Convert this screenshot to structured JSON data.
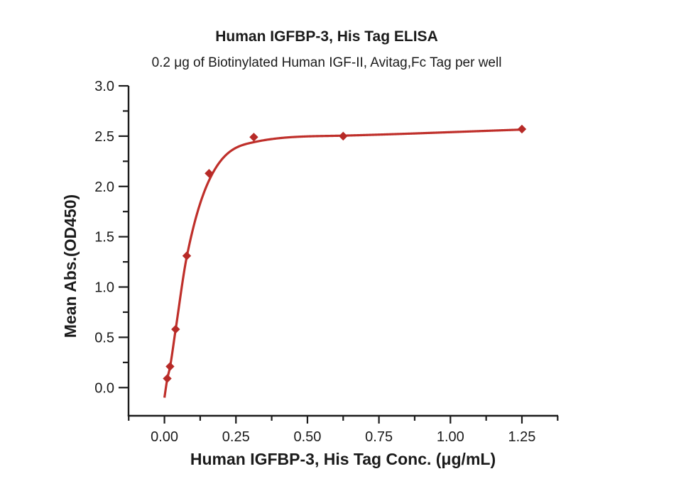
{
  "header": {
    "title": "Human IGFBP-3, His Tag ELISA",
    "subtitle": "0.2 μg of Biotinylated Human IGF-II, Avitag,Fc Tag per well"
  },
  "colors": {
    "background": "#ffffff",
    "curve": "#bf2f2a",
    "marker": "#b72a27",
    "axis": "#1b1b1b",
    "text": "#1b1b1b"
  },
  "chart_data": {
    "type": "scatter",
    "title": "Human IGFBP-3, His Tag ELISA",
    "subtitle": "0.2 μg of Biotinylated Human IGF-II, Avitag,Fc Tag per well",
    "xlabel": "Human IGFBP-3, His Tag Conc. (μg/mL)",
    "ylabel": "Mean Abs.(OD450)",
    "xlim": [
      -0.1256,
      1.3767
    ],
    "ylim": [
      -0.28,
      3.0
    ],
    "grid": false,
    "legend": "none",
    "series": [
      {
        "name": "Human IGFBP-3, His Tag",
        "marker": "diamond",
        "x": [
          0.0098,
          0.0195,
          0.039,
          0.078,
          0.156,
          0.3125,
          0.625,
          1.25
        ],
        "y": [
          0.09,
          0.21,
          0.58,
          1.31,
          2.13,
          2.49,
          2.5,
          2.57
        ]
      }
    ],
    "fit_curve_nodes": {
      "comment_visible_in_pixels_only": "smooth 4PL-style fit drawn from concentration 0 to 1.25",
      "x": [
        0.0,
        0.0098,
        0.0195,
        0.039,
        0.078,
        0.156,
        0.3125,
        0.625,
        1.25
      ],
      "y": [
        -0.1,
        0.085,
        0.205,
        0.575,
        1.3,
        2.06,
        2.44,
        2.505,
        2.565
      ]
    },
    "x_ticks": {
      "major_values": [
        0,
        0.25,
        0.5,
        0.75,
        1.0,
        1.25
      ],
      "major_labels": [
        "0.00",
        "0.25",
        "0.50",
        "0.75",
        "1.00",
        "1.25"
      ],
      "minor_values": [
        -0.125,
        0.125,
        0.375,
        0.625,
        0.875,
        1.125,
        1.375
      ]
    },
    "y_ticks": {
      "major_values": [
        0,
        0.5,
        1.0,
        1.5,
        2.0,
        2.5,
        3.0
      ],
      "major_labels": [
        "0.0",
        "0.5",
        "1.0",
        "1.5",
        "2.0",
        "2.5",
        "3.0"
      ],
      "minor_values": [
        0.25,
        0.75,
        1.25,
        1.75,
        2.25,
        2.75
      ]
    }
  }
}
